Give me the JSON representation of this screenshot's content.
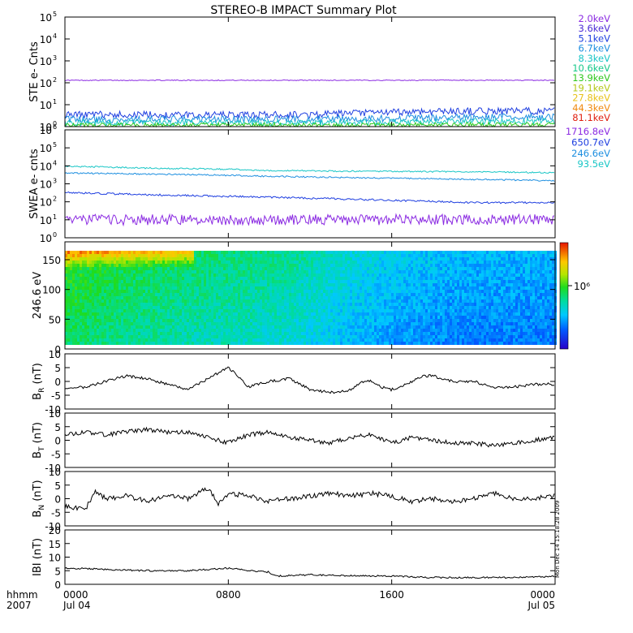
{
  "title": "STEREO-B IMPACT Summary Plot",
  "side_stamp": "Mon Dec 14 15:18:28 2009",
  "time_axis": {
    "label_top": "hhmm",
    "label_bottom": "2007",
    "ticks": [
      {
        "hour": 0,
        "time": "0000",
        "date": "Jul 04"
      },
      {
        "hour": 8,
        "time": "0800",
        "date": ""
      },
      {
        "hour": 16,
        "time": "1600",
        "date": ""
      },
      {
        "hour": 24,
        "time": "0000",
        "date": "Jul 05"
      }
    ],
    "range_hours": [
      0,
      24
    ]
  },
  "legend_ste": [
    {
      "label": "2.0keV",
      "color": "#8b2be2"
    },
    {
      "label": "3.6keV",
      "color": "#4b2bd6"
    },
    {
      "label": "5.1keV",
      "color": "#1f3fe0"
    },
    {
      "label": "6.7keV",
      "color": "#1e8fe0"
    },
    {
      "label": "8.3keV",
      "color": "#19c6c6"
    },
    {
      "label": "10.6keV",
      "color": "#17c98a"
    },
    {
      "label": "13.9keV",
      "color": "#2fc81e"
    },
    {
      "label": "19.1keV",
      "color": "#b5c81a"
    },
    {
      "label": "27.8keV",
      "color": "#e8c21a"
    },
    {
      "label": "44.3keV",
      "color": "#f08a10"
    },
    {
      "label": "81.1keV",
      "color": "#e02010"
    }
  ],
  "legend_swea": [
    {
      "label": "1716.8eV",
      "color": "#8b2be2"
    },
    {
      "label": "650.7eV",
      "color": "#1f3fe0"
    },
    {
      "label": "246.6eV",
      "color": "#1e8fe0"
    },
    {
      "label": "93.5eV",
      "color": "#19c6c6"
    }
  ],
  "colorbar": {
    "label": "10⁶"
  },
  "chart_data": [
    {
      "type": "line",
      "name": "ste",
      "ylabel": "STE e- Cnts",
      "yscale": "log",
      "ylim": [
        1,
        100000
      ],
      "yticks": [
        {
          "v": 1,
          "base": "10",
          "exp": "0"
        },
        {
          "v": 10,
          "base": "10",
          "exp": "1"
        },
        {
          "v": 100,
          "base": "10",
          "exp": "2"
        },
        {
          "v": 1000,
          "base": "10",
          "exp": "3"
        },
        {
          "v": 10000,
          "base": "10",
          "exp": "4"
        },
        {
          "v": 100000,
          "base": "10",
          "exp": "5"
        }
      ],
      "series": [
        {
          "legend": 0,
          "noise": 0.02,
          "x": [
            0,
            24
          ],
          "y": [
            130,
            130
          ]
        },
        {
          "legend": 2,
          "noise": 0.16,
          "x": [
            0,
            6,
            12,
            18,
            24
          ],
          "y": [
            3.6,
            3.4,
            3.5,
            5.0,
            5.2
          ]
        },
        {
          "legend": 3,
          "noise": 0.16,
          "x": [
            0,
            12,
            24
          ],
          "y": [
            2.1,
            2.2,
            2.8
          ]
        },
        {
          "legend": 4,
          "noise": 0.14,
          "x": [
            0,
            12,
            24
          ],
          "y": [
            1.5,
            1.5,
            1.8
          ]
        },
        {
          "legend": 6,
          "noise": 0.1,
          "x": [
            0,
            24
          ],
          "y": [
            1.15,
            1.25
          ]
        }
      ]
    },
    {
      "type": "line",
      "name": "swea",
      "ylabel": "SWEA e- cnts",
      "yscale": "log",
      "ylim": [
        1,
        1000000
      ],
      "yticks": [
        {
          "v": 1,
          "base": "10",
          "exp": "0"
        },
        {
          "v": 10,
          "base": "10",
          "exp": "1"
        },
        {
          "v": 100,
          "base": "10",
          "exp": "2"
        },
        {
          "v": 1000,
          "base": "10",
          "exp": "3"
        },
        {
          "v": 10000,
          "base": "10",
          "exp": "4"
        },
        {
          "v": 100000,
          "base": "10",
          "exp": "5"
        },
        {
          "v": 1000000,
          "base": "10",
          "exp": "6"
        }
      ],
      "series": [
        {
          "legend": 0,
          "noise": 0.3,
          "x": [
            0,
            24
          ],
          "y": [
            10,
            10
          ]
        },
        {
          "legend": 1,
          "noise": 0.05,
          "x": [
            0,
            4,
            8,
            12,
            16,
            20,
            24
          ],
          "y": [
            320,
            250,
            200,
            160,
            120,
            90,
            90
          ]
        },
        {
          "legend": 2,
          "noise": 0.04,
          "x": [
            0,
            4,
            8,
            10,
            14,
            18,
            24
          ],
          "y": [
            4000,
            3500,
            3000,
            2600,
            2200,
            1900,
            1500
          ]
        },
        {
          "legend": 3,
          "noise": 0.04,
          "x": [
            0,
            4,
            8,
            10,
            14,
            18,
            24
          ],
          "y": [
            9500,
            7500,
            6500,
            5500,
            5000,
            4800,
            4200
          ]
        }
      ]
    },
    {
      "type": "heatmap",
      "name": "pitch-angle",
      "ylabel": "246.6 eV",
      "ylim": [
        0,
        180
      ],
      "yticks": [
        0,
        50,
        100,
        150
      ],
      "data_range": [
        0,
        180
      ],
      "level_by_hour": {
        "x": [
          0,
          3,
          6.5,
          8,
          11,
          14,
          16,
          18,
          20,
          24
        ],
        "level": [
          0.55,
          0.5,
          0.46,
          0.45,
          0.42,
          0.34,
          0.3,
          0.28,
          0.26,
          0.26
        ]
      },
      "top_hot_hours": [
        0,
        6.2
      ]
    },
    {
      "type": "line",
      "name": "br",
      "ylabel": "B",
      "ysub": "R",
      "yunit": " (nT)",
      "ylim": [
        -10,
        10
      ],
      "yticks": [
        -10,
        -5,
        0,
        5,
        10
      ],
      "series": [
        {
          "color": "#000000",
          "noise": 0.5,
          "x": [
            0,
            1,
            2,
            3,
            4,
            5,
            6,
            6.5,
            7.5,
            8,
            8.6,
            9,
            10,
            11,
            11.5,
            12,
            13,
            14,
            14.5,
            15,
            15.5,
            16,
            17,
            17.5,
            18,
            19,
            20,
            21,
            22,
            23,
            24
          ],
          "y": [
            -3,
            -2,
            0,
            2,
            1,
            -1,
            -3,
            -1,
            3,
            5,
            1,
            -2,
            0,
            1,
            -1,
            -3,
            -4,
            -3,
            0,
            0,
            -2,
            -3,
            0,
            2,
            2,
            0,
            0,
            -2,
            -2,
            -1,
            -1
          ]
        }
      ]
    },
    {
      "type": "line",
      "name": "bt",
      "ylabel": "B",
      "ysub": "T",
      "yunit": " (nT)",
      "ylim": [
        -10,
        10
      ],
      "yticks": [
        -10,
        -5,
        0,
        5,
        10
      ],
      "series": [
        {
          "color": "#000000",
          "noise": 0.8,
          "x": [
            0,
            1,
            2,
            3,
            4,
            5,
            6,
            7,
            8,
            9,
            10,
            11,
            12,
            13,
            14,
            15,
            16,
            17,
            18,
            19,
            20,
            21,
            22,
            23,
            24
          ],
          "y": [
            2,
            3,
            2,
            3,
            4,
            3,
            3,
            1,
            -1,
            2,
            3,
            1,
            0,
            -1,
            1,
            2,
            -1,
            1,
            0,
            -1,
            -1,
            -2,
            -1,
            0,
            1
          ]
        }
      ]
    },
    {
      "type": "line",
      "name": "bn",
      "ylabel": "B",
      "ysub": "N",
      "yunit": " (nT)",
      "ylim": [
        -10,
        10
      ],
      "yticks": [
        -10,
        -5,
        0,
        5,
        10
      ],
      "series": [
        {
          "color": "#000000",
          "noise": 0.9,
          "x": [
            0,
            1,
            1.5,
            2,
            3,
            4,
            5,
            6,
            7,
            7.5,
            8,
            9,
            10,
            11,
            12,
            13,
            14,
            15,
            16,
            17,
            18,
            19,
            20,
            21,
            22,
            23,
            24
          ],
          "y": [
            -3,
            -4,
            3,
            0,
            1,
            -1,
            1,
            0,
            4,
            -2,
            2,
            1,
            -1,
            0,
            1,
            2,
            1,
            2,
            1,
            -1,
            0,
            -1,
            0,
            2,
            0,
            0,
            1
          ]
        }
      ]
    },
    {
      "type": "line",
      "name": "bmag",
      "ylabel": "IBI (nT)",
      "ylim": [
        0,
        20
      ],
      "yticks": [
        0,
        5,
        10,
        15,
        20
      ],
      "series": [
        {
          "color": "#000000",
          "noise": 0.3,
          "x": [
            0,
            2,
            4,
            6,
            7,
            8,
            9,
            10,
            10.3,
            12,
            14,
            16,
            18,
            20,
            22,
            24
          ],
          "y": [
            6,
            5.5,
            5,
            5,
            5.5,
            6,
            5,
            4.5,
            3,
            3.5,
            3.2,
            3,
            2.5,
            2.5,
            2.5,
            2.8
          ]
        }
      ]
    }
  ]
}
